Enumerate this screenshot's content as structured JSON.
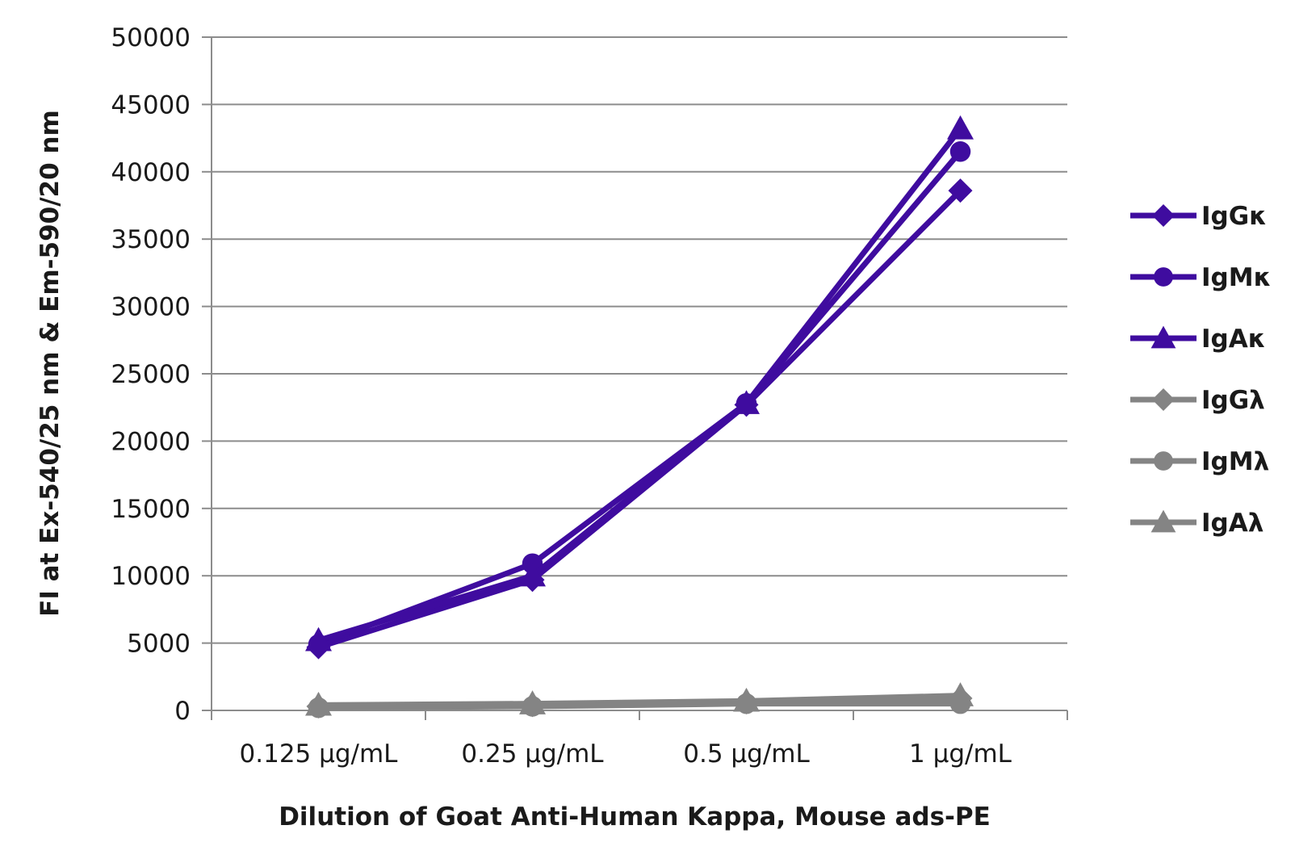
{
  "chart_data": {
    "type": "line",
    "title": "",
    "xlabel": "Dilution of Goat Anti-Human Kappa, Mouse ads-PE",
    "ylabel": "FI at Ex-540/25 nm & Em-590/20 nm",
    "categories": [
      "0.125 µg/mL",
      "0.25 µg/mL",
      "0.5 µg/mL",
      "1 µg/mL"
    ],
    "ylim": [
      0,
      50000
    ],
    "yticks": [
      0,
      5000,
      10000,
      15000,
      20000,
      25000,
      30000,
      35000,
      40000,
      45000,
      50000
    ],
    "grid": true,
    "legend_position": "right",
    "series": [
      {
        "name": "IgGκ",
        "marker": "diamond",
        "color": "#3f0c9f",
        "values": [
          4700,
          9700,
          22700,
          38600
        ]
      },
      {
        "name": "IgMκ",
        "marker": "circle",
        "color": "#3f0c9f",
        "values": [
          4900,
          10900,
          22800,
          41500
        ]
      },
      {
        "name": "IgAκ",
        "marker": "triangle",
        "color": "#3f0c9f",
        "values": [
          5200,
          10000,
          22800,
          43200
        ]
      },
      {
        "name": "IgGλ",
        "marker": "diamond",
        "color": "#848484",
        "values": [
          300,
          400,
          600,
          900
        ]
      },
      {
        "name": "IgMλ",
        "marker": "circle",
        "color": "#848484",
        "values": [
          200,
          300,
          500,
          500
        ]
      },
      {
        "name": "IgAλ",
        "marker": "triangle",
        "color": "#848484",
        "values": [
          400,
          500,
          700,
          1100
        ]
      }
    ]
  }
}
